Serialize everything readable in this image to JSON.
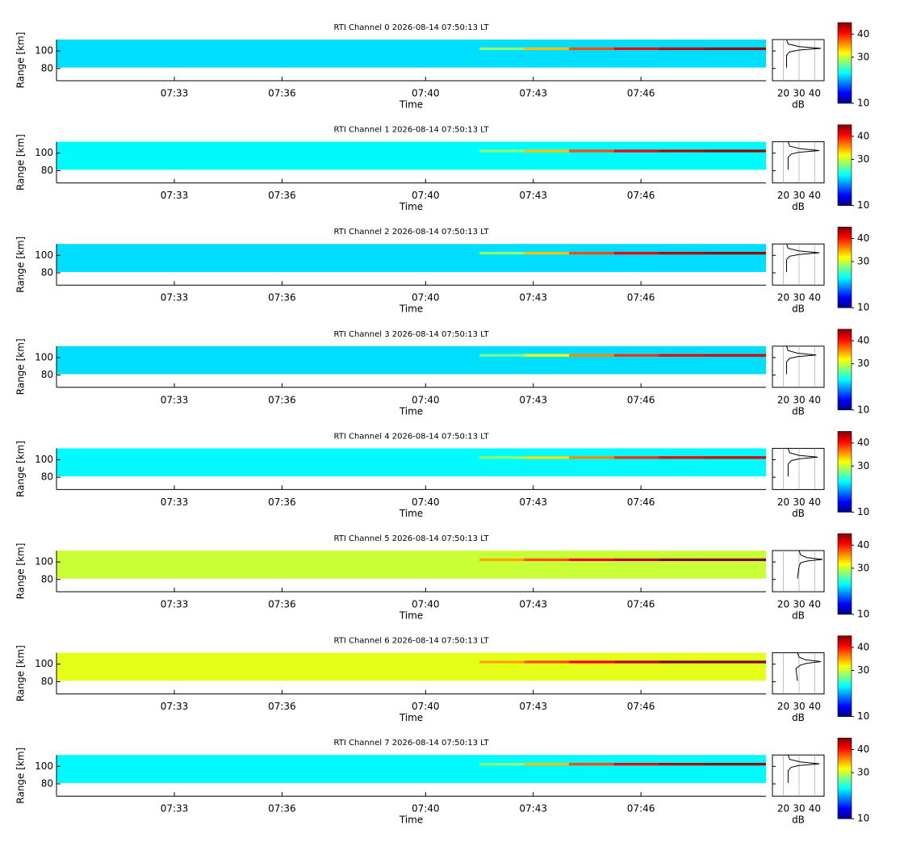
{
  "chart_data": [
    {
      "type": "rti",
      "title": "RTI Channel 0 2026-08-14 07:50:13 LT",
      "xlabel": "Time",
      "ylabel": "Range [km]",
      "xlim": [
        "07:29:43",
        "07:49:29"
      ],
      "xticks": [
        "07:33",
        "07:36",
        "07:40",
        "07:43",
        "07:46"
      ],
      "ylim": [
        66,
        113
      ],
      "yticks": [
        80,
        100
      ],
      "background": {
        "range": [
          81,
          113
        ],
        "value": 22
      },
      "layer": {
        "range": [
          101,
          104
        ],
        "x": [
          "07:41:30",
          "07:42:45",
          "07:44:00",
          "07:45:15",
          "07:46:30",
          "07:47:45"
        ],
        "values": [
          28,
          34,
          38,
          41,
          43,
          44
        ]
      },
      "profile": {
        "xlabel": "dB",
        "xlim": [
          13,
          46
        ],
        "xticks": [
          20,
          30,
          40
        ],
        "y": [
          81,
          95,
          99,
          101,
          103,
          105,
          108,
          113
        ],
        "values": [
          22,
          22,
          24,
          30,
          44,
          30,
          23,
          22
        ]
      },
      "colorbar": {
        "lim": [
          10,
          45
        ],
        "ticks": [
          10,
          30,
          40
        ]
      }
    },
    {
      "type": "rti",
      "title": "RTI Channel 1 2026-08-14 07:50:13 LT",
      "xlabel": "Time",
      "ylabel": "Range [km]",
      "xlim": [
        "07:29:43",
        "07:49:29"
      ],
      "xticks": [
        "07:33",
        "07:36",
        "07:40",
        "07:43",
        "07:46"
      ],
      "ylim": [
        66,
        113
      ],
      "yticks": [
        80,
        100
      ],
      "background": {
        "range": [
          81,
          113
        ],
        "value": 23
      },
      "layer": {
        "range": [
          101,
          104
        ],
        "x": [
          "07:41:30",
          "07:42:45",
          "07:44:00",
          "07:45:15",
          "07:46:30",
          "07:47:45"
        ],
        "values": [
          28,
          34,
          38,
          41,
          43,
          44
        ]
      },
      "profile": {
        "xlabel": "dB",
        "xlim": [
          13,
          46
        ],
        "xticks": [
          20,
          30,
          40
        ],
        "y": [
          81,
          95,
          99,
          101,
          103,
          105,
          108,
          113
        ],
        "values": [
          23,
          23,
          25,
          30,
          43,
          31,
          24,
          23
        ]
      },
      "colorbar": {
        "lim": [
          10,
          45
        ],
        "ticks": [
          10,
          30,
          40
        ]
      }
    },
    {
      "type": "rti",
      "title": "RTI Channel 2 2026-08-14 07:50:13 LT",
      "xlabel": "Time",
      "ylabel": "Range [km]",
      "xlim": [
        "07:29:43",
        "07:49:29"
      ],
      "xticks": [
        "07:33",
        "07:36",
        "07:40",
        "07:43",
        "07:46"
      ],
      "ylim": [
        66,
        113
      ],
      "yticks": [
        80,
        100
      ],
      "background": {
        "range": [
          81,
          113
        ],
        "value": 22
      },
      "layer": {
        "range": [
          101,
          104
        ],
        "x": [
          "07:41:30",
          "07:42:45",
          "07:44:00",
          "07:45:15",
          "07:46:30",
          "07:47:45"
        ],
        "values": [
          28,
          34,
          38,
          41,
          43,
          44
        ]
      },
      "profile": {
        "xlabel": "dB",
        "xlim": [
          13,
          46
        ],
        "xticks": [
          20,
          30,
          40
        ],
        "y": [
          81,
          95,
          99,
          101,
          103,
          105,
          108,
          113
        ],
        "values": [
          22,
          22,
          24,
          30,
          43,
          30,
          23,
          22
        ]
      },
      "colorbar": {
        "lim": [
          10,
          45
        ],
        "ticks": [
          10,
          30,
          40
        ]
      }
    },
    {
      "type": "rti",
      "title": "RTI Channel 3 2026-08-14 07:50:13 LT",
      "xlabel": "Time",
      "ylabel": "Range [km]",
      "xlim": [
        "07:29:43",
        "07:49:29"
      ],
      "xticks": [
        "07:33",
        "07:36",
        "07:40",
        "07:43",
        "07:46"
      ],
      "ylim": [
        66,
        113
      ],
      "yticks": [
        80,
        100
      ],
      "background": {
        "range": [
          81,
          113
        ],
        "value": 22
      },
      "layer": {
        "range": [
          101,
          104
        ],
        "x": [
          "07:41:30",
          "07:42:45",
          "07:44:00",
          "07:45:15",
          "07:46:30",
          "07:47:45"
        ],
        "values": [
          27,
          32,
          36,
          39,
          41,
          42
        ]
      },
      "profile": {
        "xlabel": "dB",
        "xlim": [
          13,
          46
        ],
        "xticks": [
          20,
          30,
          40
        ],
        "y": [
          81,
          95,
          99,
          101,
          103,
          105,
          108,
          113
        ],
        "values": [
          22,
          22,
          24,
          29,
          41,
          29,
          23,
          22
        ]
      },
      "colorbar": {
        "lim": [
          10,
          45
        ],
        "ticks": [
          10,
          30,
          40
        ]
      }
    },
    {
      "type": "rti",
      "title": "RTI Channel 4 2026-08-14 07:50:13 LT",
      "xlabel": "Time",
      "ylabel": "Range [km]",
      "xlim": [
        "07:29:43",
        "07:49:29"
      ],
      "xticks": [
        "07:33",
        "07:36",
        "07:40",
        "07:43",
        "07:46"
      ],
      "ylim": [
        66,
        113
      ],
      "yticks": [
        80,
        100
      ],
      "background": {
        "range": [
          81,
          113
        ],
        "value": 23
      },
      "layer": {
        "range": [
          101,
          104
        ],
        "x": [
          "07:41:30",
          "07:42:45",
          "07:44:00",
          "07:45:15",
          "07:46:30",
          "07:47:45"
        ],
        "values": [
          28,
          33,
          36,
          39,
          41,
          42
        ]
      },
      "profile": {
        "xlabel": "dB",
        "xlim": [
          13,
          46
        ],
        "xticks": [
          20,
          30,
          40
        ],
        "y": [
          81,
          95,
          99,
          101,
          103,
          105,
          108,
          113
        ],
        "values": [
          23,
          23,
          25,
          30,
          42,
          30,
          24,
          23
        ]
      },
      "colorbar": {
        "lim": [
          10,
          45
        ],
        "ticks": [
          10,
          30,
          40
        ]
      }
    },
    {
      "type": "rti",
      "title": "RTI Channel 5 2026-08-14 07:50:13 LT",
      "xlabel": "Time",
      "ylabel": "Range [km]",
      "xlim": [
        "07:29:43",
        "07:49:29"
      ],
      "xticks": [
        "07:33",
        "07:36",
        "07:40",
        "07:43",
        "07:46"
      ],
      "ylim": [
        66,
        113
      ],
      "yticks": [
        80,
        100
      ],
      "background": {
        "range": [
          81,
          113
        ],
        "value": 30
      },
      "layer": {
        "range": [
          101,
          104
        ],
        "x": [
          "07:41:30",
          "07:42:45",
          "07:44:00",
          "07:45:15",
          "07:46:30",
          "07:47:45"
        ],
        "values": [
          35,
          38,
          41,
          43,
          45,
          45
        ]
      },
      "profile": {
        "xlabel": "dB",
        "xlim": [
          13,
          46
        ],
        "xticks": [
          20,
          30,
          40
        ],
        "y": [
          81,
          95,
          99,
          101,
          103,
          105,
          108,
          113
        ],
        "values": [
          29,
          30,
          31,
          35,
          45,
          35,
          31,
          30
        ]
      },
      "colorbar": {
        "lim": [
          10,
          45
        ],
        "ticks": [
          10,
          30,
          40
        ]
      }
    },
    {
      "type": "rti",
      "title": "RTI Channel 6 2026-08-14 07:50:13 LT",
      "xlabel": "Time",
      "ylabel": "Range [km]",
      "xlim": [
        "07:29:43",
        "07:49:29"
      ],
      "xticks": [
        "07:33",
        "07:36",
        "07:40",
        "07:43",
        "07:46"
      ],
      "ylim": [
        66,
        113
      ],
      "yticks": [
        80,
        100
      ],
      "background": {
        "range": [
          81,
          113
        ],
        "value": 31
      },
      "layer": {
        "range": [
          101,
          104
        ],
        "x": [
          "07:41:30",
          "07:42:45",
          "07:44:00",
          "07:45:15",
          "07:46:30",
          "07:47:45"
        ],
        "values": [
          35,
          38,
          41,
          43,
          45,
          45
        ]
      },
      "profile": {
        "xlabel": "dB",
        "xlim": [
          13,
          46
        ],
        "xticks": [
          20,
          30,
          40
        ],
        "y": [
          81,
          95,
          99,
          101,
          103,
          105,
          108,
          113
        ],
        "values": [
          29,
          28,
          31,
          35,
          44,
          34,
          30,
          29
        ]
      },
      "colorbar": {
        "lim": [
          10,
          45
        ],
        "ticks": [
          10,
          30,
          40
        ]
      }
    },
    {
      "type": "rti",
      "title": "RTI Channel 7 2026-08-14 07:50:13 LT",
      "xlabel": "Time",
      "ylabel": "Range [km]",
      "xlim": [
        "07:29:43",
        "07:49:29"
      ],
      "xticks": [
        "07:33",
        "07:36",
        "07:40",
        "07:43",
        "07:46"
      ],
      "ylim": [
        66,
        113
      ],
      "yticks": [
        80,
        100
      ],
      "background": {
        "range": [
          81,
          113
        ],
        "value": 23
      },
      "layer": {
        "range": [
          101,
          104
        ],
        "x": [
          "07:41:30",
          "07:42:45",
          "07:44:00",
          "07:45:15",
          "07:46:30",
          "07:47:45"
        ],
        "values": [
          28,
          34,
          38,
          41,
          43,
          44
        ]
      },
      "profile": {
        "xlabel": "dB",
        "xlim": [
          13,
          46
        ],
        "xticks": [
          20,
          30,
          40
        ],
        "y": [
          81,
          95,
          99,
          101,
          103,
          105,
          108,
          113
        ],
        "values": [
          23,
          23,
          25,
          30,
          43,
          31,
          24,
          23
        ]
      },
      "colorbar": {
        "lim": [
          10,
          45
        ],
        "ticks": [
          10,
          30,
          40
        ]
      }
    }
  ]
}
